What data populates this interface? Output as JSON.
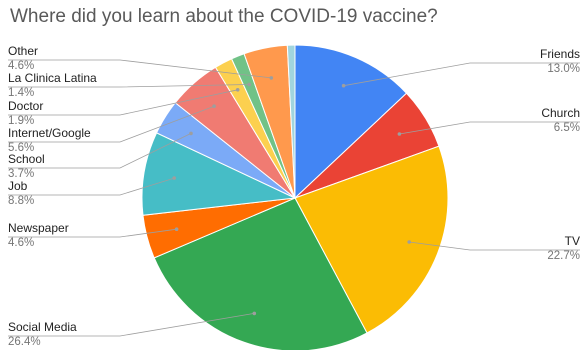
{
  "chart_data": {
    "type": "pie",
    "title": "Where did you learn about the COVID-19 vaccine?",
    "slices": [
      {
        "name": "Friends",
        "value": 13.0,
        "label": "13.0%",
        "color": "#4285F4"
      },
      {
        "name": "Church",
        "value": 6.5,
        "label": "6.5%",
        "color": "#EA4335"
      },
      {
        "name": "TV",
        "value": 22.7,
        "label": "22.7%",
        "color": "#FBBC04"
      },
      {
        "name": "Social Media",
        "value": 26.4,
        "label": "26.4%",
        "color": "#34A853"
      },
      {
        "name": "Newspaper",
        "value": 4.6,
        "label": "4.6%",
        "color": "#FF6D01"
      },
      {
        "name": "Job",
        "value": 8.8,
        "label": "8.8%",
        "color": "#46BDC6"
      },
      {
        "name": "School",
        "value": 3.7,
        "label": "3.7%",
        "color": "#7BAAF7"
      },
      {
        "name": "Internet/Google",
        "value": 5.6,
        "label": "5.6%",
        "color": "#F07B72"
      },
      {
        "name": "Doctor",
        "value": 1.9,
        "label": "1.9%",
        "color": "#FCD04F"
      },
      {
        "name": "La Clinica Latina",
        "value": 1.4,
        "label": "1.4%",
        "color": "#71C287"
      },
      {
        "name": "Other",
        "value": 4.6,
        "label": "4.6%",
        "color": "#FF994D"
      },
      {
        "name": "",
        "value": 0.8,
        "label": "",
        "color": "#A1D5DE"
      }
    ]
  }
}
